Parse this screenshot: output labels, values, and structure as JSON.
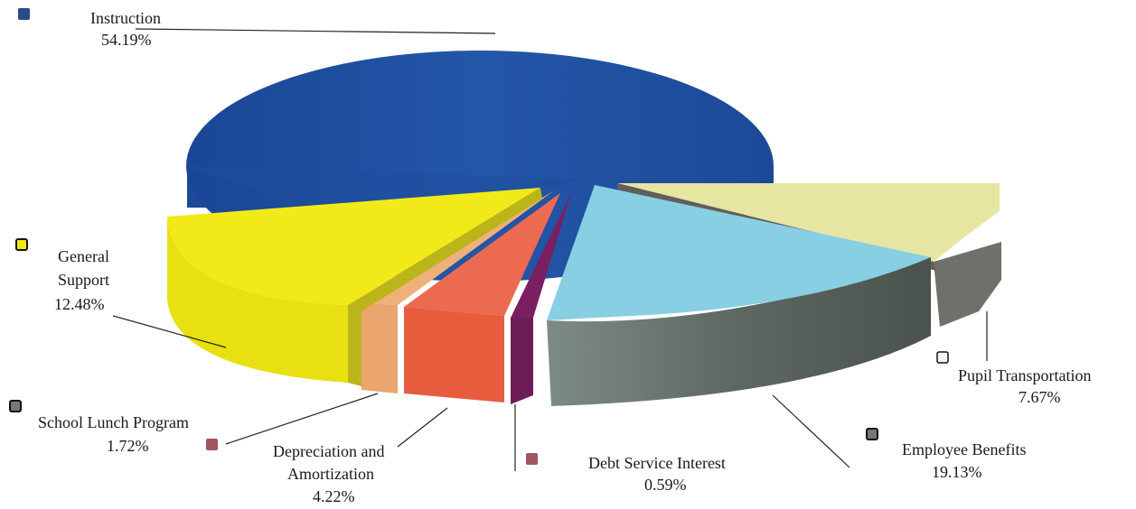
{
  "chart_data": {
    "type": "pie",
    "title": "",
    "slices": [
      {
        "name": "Instruction",
        "value": 54.19,
        "pct_label": "54.19%",
        "color": "#1f4e9c",
        "dark": "#173d7a"
      },
      {
        "name": "Pupil Transportation",
        "value": 7.67,
        "pct_label": "7.67%",
        "color": "#e6e6a4",
        "dark": "#6d6d62"
      },
      {
        "name": "Employee Benefits",
        "value": 19.13,
        "pct_label": "19.13%",
        "color": "#86d0e6",
        "dark": "#6c7670"
      },
      {
        "name": "Debt Service Interest",
        "value": 0.59,
        "pct_label": "0.59%",
        "color": "#8c2870",
        "dark": "#6e1c58"
      },
      {
        "name": "Depreciation and Amortization",
        "value": 4.22,
        "pct_label": "4.22%",
        "color": "#ec6a50",
        "dark": "#c84a32"
      },
      {
        "name": "School Lunch Program",
        "value": 1.72,
        "pct_label": "1.72%",
        "color": "#f0b07a",
        "dark": "#c88a50"
      },
      {
        "name": "General Support",
        "value": 12.48,
        "pct_label": "12.48%",
        "color": "#f2ea18",
        "dark": "#c8c01a"
      }
    ],
    "legend_markers": [
      {
        "for": "Instruction",
        "color": "#2c4a8a"
      },
      {
        "for": "General Support",
        "color": "#f2ea18"
      },
      {
        "for": "School Lunch Program",
        "color": "#777777"
      },
      {
        "for": "Depreciation and Amortization",
        "color": "#a05560"
      },
      {
        "for": "Debt Service Interest",
        "color": "#a05560"
      },
      {
        "for": "Employee Benefits",
        "color": "#777777"
      },
      {
        "for": "Pupil Transportation",
        "color": "#eeeeee"
      }
    ]
  },
  "labels": {
    "instruction": {
      "l1": "Instruction",
      "pct": "54.19%"
    },
    "general_support": {
      "l1": "General",
      "l2": "Support",
      "pct": "12.48%"
    },
    "school_lunch": {
      "l1": "School Lunch Program",
      "pct": "1.72%"
    },
    "depreciation": {
      "l1": "Depreciation and",
      "l2": "Amortization",
      "pct": "4.22%"
    },
    "debt_service": {
      "l1": "Debt Service Interest",
      "pct": "0.59%"
    },
    "employee_benefits": {
      "l1": "Employee Benefits",
      "pct": "19.13%"
    },
    "pupil_transport": {
      "l1": "Pupil Transportation",
      "pct": "7.67%"
    }
  }
}
